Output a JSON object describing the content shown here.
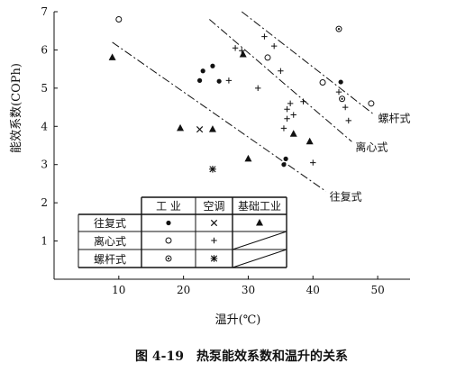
{
  "chart_data": {
    "type": "scatter",
    "xlabel": "温升(℃)",
    "ylabel": "能效系数(COPh)",
    "caption": "图 4-19　热泵能效系数和温升的关系",
    "xlim": [
      0,
      55
    ],
    "ylim": [
      0,
      7
    ],
    "x_ticks": [
      10,
      20,
      30,
      40,
      50
    ],
    "y_ticks": [
      1,
      2,
      3,
      4,
      5,
      6,
      7
    ],
    "grid": false,
    "trend_lines": [
      {
        "label": "螺杆式",
        "from": [
          29,
          7.0
        ],
        "to": [
          49.5,
          4.3
        ]
      },
      {
        "label": "离心式",
        "from": [
          24,
          6.8
        ],
        "to": [
          46,
          3.6
        ]
      },
      {
        "label": "往复式",
        "from": [
          9,
          6.2
        ],
        "to": [
          42,
          2.3
        ]
      }
    ],
    "legend": {
      "placement": "bottom-center",
      "col_headers": [
        "工 业",
        "空调",
        "基础工业"
      ],
      "row_headers": [
        "往复式",
        "离心式",
        "螺杆式"
      ]
    },
    "series": [
      {
        "type_row": "往复式",
        "use_col": "工 业",
        "marker": "filled-dot",
        "points": [
          [
            22.5,
            5.2
          ],
          [
            23,
            5.45
          ],
          [
            24.5,
            5.58
          ],
          [
            25.5,
            5.18
          ],
          [
            35.5,
            3.0
          ],
          [
            35.8,
            3.15
          ],
          [
            44.3,
            5.16
          ]
        ]
      },
      {
        "type_row": "往复式",
        "use_col": "空调",
        "marker": "x",
        "points": [
          [
            22.5,
            3.92
          ]
        ]
      },
      {
        "type_row": "往复式",
        "use_col": "基础工业",
        "marker": "triangle",
        "points": [
          [
            9,
            5.8
          ],
          [
            19.5,
            3.95
          ],
          [
            24.5,
            3.92
          ],
          [
            29.2,
            5.88
          ],
          [
            30,
            3.15
          ],
          [
            37,
            3.8
          ],
          [
            39.5,
            3.6
          ]
        ]
      },
      {
        "type_row": "离心式",
        "use_col": "工 业",
        "marker": "open-circle",
        "points": [
          [
            10,
            6.8
          ],
          [
            33,
            5.8
          ],
          [
            41.5,
            5.15
          ],
          [
            49,
            4.6
          ]
        ]
      },
      {
        "type_row": "离心式",
        "use_col": "空调",
        "marker": "plus",
        "points": [
          [
            28,
            6.05
          ],
          [
            29,
            5.98
          ],
          [
            27,
            5.2
          ],
          [
            32.5,
            6.35
          ],
          [
            34,
            6.1
          ],
          [
            35,
            5.45
          ],
          [
            31.5,
            5.0
          ],
          [
            38.5,
            4.65
          ],
          [
            36,
            4.45
          ],
          [
            36.5,
            4.6
          ],
          [
            37,
            4.3
          ],
          [
            36,
            4.2
          ],
          [
            35.5,
            3.95
          ],
          [
            44,
            4.9
          ],
          [
            45,
            4.5
          ],
          [
            45.5,
            4.15
          ],
          [
            40,
            3.05
          ]
        ]
      },
      {
        "type_row": "螺杆式",
        "use_col": "工 业",
        "marker": "circle-dot",
        "points": [
          [
            44,
            6.55
          ],
          [
            44.5,
            4.72
          ]
        ]
      },
      {
        "type_row": "螺杆式",
        "use_col": "空调",
        "marker": "asterisk",
        "points": [
          [
            24.5,
            2.88
          ]
        ]
      }
    ]
  }
}
